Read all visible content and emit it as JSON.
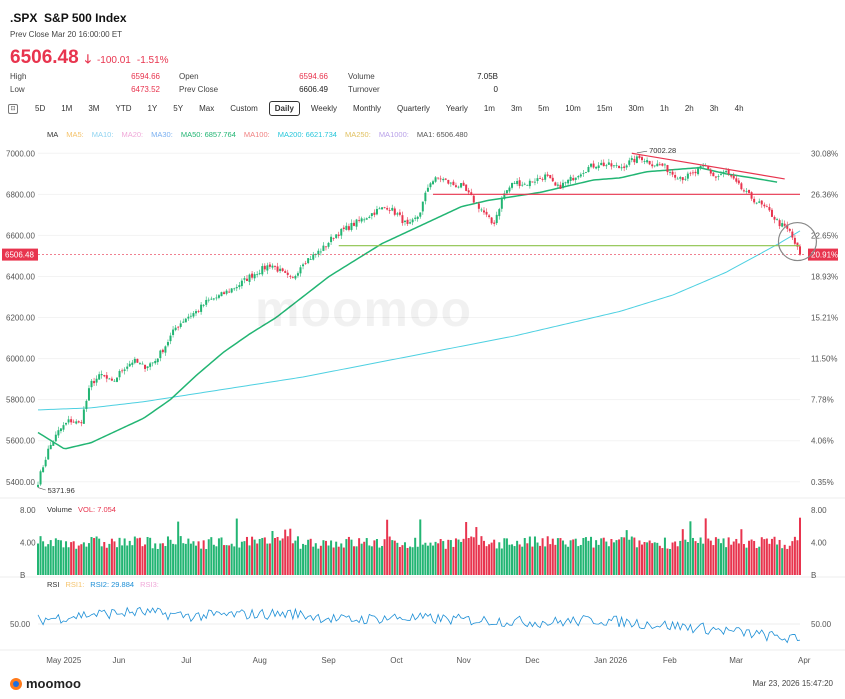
{
  "header": {
    "symbol": ".SPX",
    "name": "S&P 500 Index",
    "prev_close_time": "Prev Close Mar 20 16:00:00 ET",
    "price": "6506.48",
    "arrow": "🡓",
    "change": "-100.01",
    "change_pct": "-1.51%"
  },
  "stats": {
    "high_label": "High",
    "high": "6594.66",
    "low_label": "Low",
    "low": "6473.52",
    "open_label": "Open",
    "open": "6594.66",
    "prev_close_label": "Prev Close",
    "prev_close": "6606.49",
    "volume_label": "Volume",
    "volume": "7.05B",
    "turnover_label": "Turnover",
    "turnover": "0"
  },
  "tabs": [
    "5D",
    "1M",
    "3M",
    "YTD",
    "1Y",
    "5Y",
    "Max",
    "Custom",
    "Daily",
    "Weekly",
    "Monthly",
    "Quarterly",
    "Yearly",
    "1m",
    "3m",
    "5m",
    "10m",
    "15m",
    "30m",
    "1h",
    "2h",
    "3h",
    "4h"
  ],
  "active_tab": "Daily",
  "ma_legend": {
    "title": "MA",
    "items": [
      {
        "label": "MA5:",
        "color": "#f5c36b"
      },
      {
        "label": "MA10:",
        "color": "#8fd3f0"
      },
      {
        "label": "MA20:",
        "color": "#f0a8d8"
      },
      {
        "label": "MA30:",
        "color": "#7ab0f0"
      },
      {
        "label": "MA50: 6857.764",
        "color": "#22b573"
      },
      {
        "label": "MA100:",
        "color": "#f08080"
      },
      {
        "label": "MA200: 6621.734",
        "color": "#26c6da"
      },
      {
        "label": "MA250:",
        "color": "#e0c060"
      },
      {
        "label": "MA1000:",
        "color": "#b8a0e8"
      },
      {
        "label": "MA1: 6506.480",
        "color": "#555555"
      }
    ]
  },
  "volume_legend": {
    "title": "Volume",
    "value": "VOL: 7.054"
  },
  "rsi_legend": {
    "title": "RSI",
    "items": [
      {
        "label": "RSI1:",
        "color": "#f5c36b"
      },
      {
        "label": "RSI2: 29.884",
        "color": "#1d8fd6"
      },
      {
        "label": "RSI3:",
        "color": "#f0a8d8"
      }
    ]
  },
  "chart_data": {
    "type": "candlestick",
    "x_labels": [
      "May 2025",
      "Jun",
      "Jul",
      "Aug",
      "Sep",
      "Oct",
      "Nov",
      "Dec",
      "Jan 2026",
      "Feb",
      "Mar",
      "Apr"
    ],
    "y_ticks": [
      "7000.00",
      "6800.00",
      "6600.00",
      "6400.00",
      "6200.00",
      "6000.00",
      "5800.00",
      "5600.00",
      "5400.00"
    ],
    "y_range": [
      5360,
      7050
    ],
    "pct_ticks": [
      "30.08%",
      "26.36%",
      "22.65%",
      "18.93%",
      "15.21%",
      "11.50%",
      "7.78%",
      "4.06%",
      "0.35%"
    ],
    "last_price_label": "6506.48",
    "last_pct_label": "20.91%",
    "high_annotation": "7002.28",
    "low_annotation": "5371.96",
    "close_keypoints": [
      [
        0,
        5400
      ],
      [
        4,
        5560
      ],
      [
        8,
        5650
      ],
      [
        12,
        5700
      ],
      [
        16,
        5680
      ],
      [
        20,
        5880
      ],
      [
        24,
        5920
      ],
      [
        28,
        5880
      ],
      [
        32,
        5950
      ],
      [
        36,
        5990
      ],
      [
        40,
        5960
      ],
      [
        44,
        5985
      ],
      [
        48,
        6060
      ],
      [
        52,
        6150
      ],
      [
        56,
        6200
      ],
      [
        60,
        6230
      ],
      [
        64,
        6280
      ],
      [
        68,
        6300
      ],
      [
        72,
        6330
      ],
      [
        76,
        6360
      ],
      [
        80,
        6400
      ],
      [
        84,
        6430
      ],
      [
        88,
        6460
      ],
      [
        92,
        6420
      ],
      [
        96,
        6380
      ],
      [
        100,
        6470
      ],
      [
        104,
        6500
      ],
      [
        108,
        6540
      ],
      [
        112,
        6600
      ],
      [
        116,
        6630
      ],
      [
        120,
        6660
      ],
      [
        124,
        6690
      ],
      [
        128,
        6720
      ],
      [
        132,
        6740
      ],
      [
        136,
        6700
      ],
      [
        140,
        6640
      ],
      [
        144,
        6700
      ],
      [
        148,
        6860
      ],
      [
        152,
        6880
      ],
      [
        156,
        6850
      ],
      [
        160,
        6840
      ],
      [
        164,
        6780
      ],
      [
        168,
        6720
      ],
      [
        172,
        6650
      ],
      [
        176,
        6800
      ],
      [
        180,
        6860
      ],
      [
        184,
        6850
      ],
      [
        188,
        6870
      ],
      [
        192,
        6890
      ],
      [
        196,
        6830
      ],
      [
        200,
        6860
      ],
      [
        204,
        6900
      ],
      [
        208,
        6930
      ],
      [
        212,
        6950
      ],
      [
        216,
        6940
      ],
      [
        220,
        6930
      ],
      [
        224,
        6960
      ],
      [
        228,
        6980
      ],
      [
        232,
        6950
      ],
      [
        236,
        6940
      ],
      [
        240,
        6900
      ],
      [
        244,
        6880
      ],
      [
        248,
        6900
      ],
      [
        252,
        6940
      ],
      [
        256,
        6880
      ],
      [
        260,
        6910
      ],
      [
        264,
        6850
      ],
      [
        268,
        6800
      ],
      [
        272,
        6760
      ],
      [
        276,
        6720
      ],
      [
        280,
        6660
      ],
      [
        284,
        6620
      ],
      [
        288,
        6506
      ]
    ],
    "ma50_keypoints": [
      [
        0,
        5640
      ],
      [
        10,
        5560
      ],
      [
        20,
        5590
      ],
      [
        30,
        5650
      ],
      [
        40,
        5710
      ],
      [
        50,
        5800
      ],
      [
        60,
        5920
      ],
      [
        70,
        6030
      ],
      [
        80,
        6120
      ],
      [
        90,
        6200
      ],
      [
        100,
        6300
      ],
      [
        110,
        6400
      ],
      [
        120,
        6480
      ],
      [
        130,
        6560
      ],
      [
        140,
        6620
      ],
      [
        150,
        6680
      ],
      [
        160,
        6740
      ],
      [
        170,
        6770
      ],
      [
        180,
        6790
      ],
      [
        190,
        6810
      ],
      [
        200,
        6840
      ],
      [
        210,
        6870
      ],
      [
        220,
        6880
      ],
      [
        230,
        6910
      ],
      [
        240,
        6920
      ],
      [
        250,
        6930
      ],
      [
        260,
        6900
      ],
      [
        270,
        6880
      ],
      [
        280,
        6858
      ]
    ],
    "ma200_keypoints": [
      [
        0,
        5750
      ],
      [
        20,
        5760
      ],
      [
        40,
        5790
      ],
      [
        60,
        5830
      ],
      [
        80,
        5870
      ],
      [
        100,
        5910
      ],
      [
        120,
        5960
      ],
      [
        140,
        6010
      ],
      [
        160,
        6060
      ],
      [
        180,
        6110
      ],
      [
        200,
        6170
      ],
      [
        220,
        6230
      ],
      [
        240,
        6310
      ],
      [
        260,
        6420
      ],
      [
        280,
        6560
      ],
      [
        288,
        6622
      ]
    ],
    "trendlines": [
      {
        "points": [
          [
            233,
            7000
          ],
          [
            293,
            6875
          ]
        ],
        "color": "#e8344e"
      },
      {
        "points": [
          [
            155,
            6800
          ],
          [
            299,
            6800
          ]
        ],
        "color": "#e8344e"
      },
      {
        "points": [
          [
            118,
            6550
          ],
          [
            299,
            6550
          ]
        ],
        "color": "#8bc34a"
      }
    ],
    "volume_ticks": [
      "8.00",
      "4.00",
      "B"
    ],
    "volume_range": [
      0,
      8
    ],
    "volume_last": 7.054,
    "rsi_ticks": [
      "50.00"
    ],
    "rsi_range": [
      0,
      100
    ],
    "rsi_last": 29.884
  },
  "watermark": "moomoo",
  "footer": {
    "brand": "moomoo",
    "timestamp": "Mar 23, 2026 15:47:20"
  }
}
